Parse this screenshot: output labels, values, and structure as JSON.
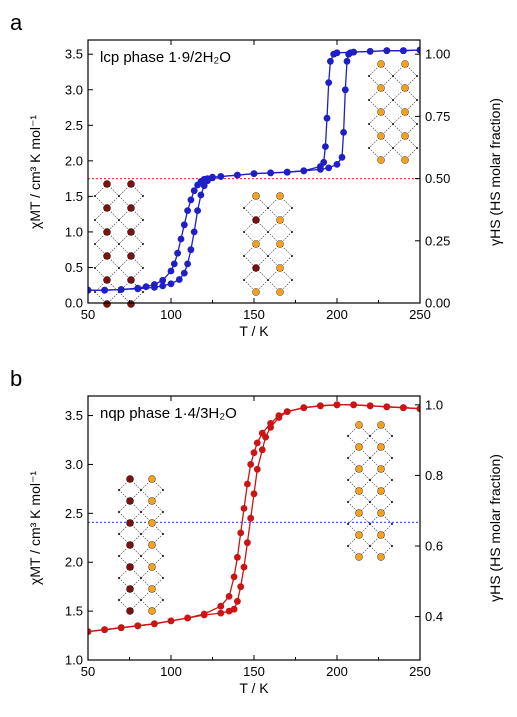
{
  "figure": {
    "panel_letters": [
      "a",
      "b"
    ]
  },
  "colors": {
    "panel_a": "#1f1fc8",
    "panel_b": "#cc1414",
    "ls_site": "#7a1010",
    "hs_site": "#f4a020",
    "lattice": "#333333"
  },
  "chart_data": [
    {
      "type": "line",
      "panel": "a",
      "annotation": "lcp phase 1·9/2H₂O",
      "xlabel": "T / K",
      "ylabel": "χMT / cm³ K mol⁻¹",
      "y2label": "γHS (HS molar fraction)",
      "xlim": [
        50,
        250
      ],
      "ylim": [
        0,
        3.7
      ],
      "y2lim": [
        0,
        1.057
      ],
      "x_ticks": [
        "50",
        "100",
        "150",
        "200",
        "250"
      ],
      "y_ticks": [
        "0.0",
        "0.5",
        "1.0",
        "1.5",
        "2.0",
        "2.5",
        "3.0",
        "3.5"
      ],
      "y2_ticks": [
        "0.00",
        "0.25",
        "0.50",
        "0.75",
        "1.00"
      ],
      "reference_line": {
        "y2": 0.5,
        "color": "#ff3b3b"
      },
      "series": [
        {
          "x": [
            50,
            60,
            70,
            80,
            85,
            90,
            95,
            100,
            102,
            104,
            106,
            108,
            110,
            112,
            114,
            116,
            118,
            120,
            122,
            125,
            130,
            140,
            150,
            160,
            170,
            180,
            190,
            195,
            200,
            203,
            204,
            205,
            206,
            207,
            208,
            210,
            220,
            230,
            240,
            250
          ],
          "y": [
            0.18,
            0.18,
            0.19,
            0.21,
            0.23,
            0.26,
            0.32,
            0.45,
            0.55,
            0.7,
            0.9,
            1.1,
            1.3,
            1.45,
            1.58,
            1.66,
            1.71,
            1.74,
            1.75,
            1.77,
            1.78,
            1.8,
            1.82,
            1.83,
            1.84,
            1.86,
            1.88,
            1.9,
            1.95,
            2.05,
            2.4,
            3.0,
            3.4,
            3.5,
            3.52,
            3.53,
            3.54,
            3.55,
            3.55,
            3.56
          ]
        },
        {
          "x": [
            250,
            240,
            230,
            220,
            210,
            200,
            198,
            196,
            195,
            194,
            193,
            192,
            190,
            180,
            170,
            160,
            150,
            140,
            130,
            125,
            122,
            120,
            118,
            116,
            114,
            112,
            110,
            108,
            105,
            100,
            95,
            90,
            80,
            70,
            60,
            50
          ],
          "y": [
            3.56,
            3.55,
            3.55,
            3.54,
            3.53,
            3.52,
            3.5,
            3.4,
            3.1,
            2.6,
            2.2,
            1.98,
            1.92,
            1.86,
            1.84,
            1.83,
            1.82,
            1.8,
            1.78,
            1.76,
            1.72,
            1.65,
            1.52,
            1.3,
            1.0,
            0.75,
            0.55,
            0.42,
            0.33,
            0.27,
            0.24,
            0.22,
            0.2,
            0.19,
            0.18,
            0.18
          ]
        }
      ]
    },
    {
      "type": "line",
      "panel": "b",
      "annotation": "nqp phase 1·4/3H₂O",
      "xlabel": "T / K",
      "ylabel": "χMT / cm³ K mol⁻¹",
      "y2label": "γHS (HS molar fraction)",
      "xlim": [
        50,
        250
      ],
      "ylim": [
        1.0,
        3.7
      ],
      "y2lim": [
        0.277,
        1.025
      ],
      "x_ticks": [
        "50",
        "100",
        "150",
        "200",
        "250"
      ],
      "y_ticks": [
        "1.0",
        "1.5",
        "2.0",
        "2.5",
        "3.0",
        "3.5"
      ],
      "y2_ticks": [
        "0.4",
        "0.6",
        "0.8",
        "1.0"
      ],
      "reference_line": {
        "y2": 0.667,
        "color": "#4a62e0"
      },
      "series": [
        {
          "x": [
            50,
            60,
            70,
            80,
            90,
            100,
            110,
            120,
            130,
            135,
            138,
            140,
            142,
            144,
            146,
            148,
            150,
            152,
            155,
            160,
            165,
            170,
            180,
            190,
            200,
            210,
            220,
            230,
            240,
            250
          ],
          "y": [
            1.29,
            1.31,
            1.33,
            1.35,
            1.37,
            1.4,
            1.43,
            1.47,
            1.55,
            1.65,
            1.85,
            2.05,
            2.3,
            2.55,
            2.8,
            3.0,
            3.12,
            3.22,
            3.32,
            3.42,
            3.5,
            3.54,
            3.58,
            3.6,
            3.61,
            3.61,
            3.6,
            3.59,
            3.58,
            3.57
          ]
        },
        {
          "x": [
            250,
            240,
            230,
            220,
            210,
            200,
            190,
            180,
            170,
            165,
            160,
            157,
            155,
            152,
            150,
            148,
            146,
            144,
            142,
            140,
            138,
            135,
            130,
            120,
            110,
            100,
            90,
            80,
            70,
            60,
            50
          ],
          "y": [
            3.57,
            3.58,
            3.59,
            3.6,
            3.61,
            3.61,
            3.6,
            3.58,
            3.54,
            3.48,
            3.38,
            3.28,
            3.15,
            2.95,
            2.7,
            2.45,
            2.2,
            1.95,
            1.75,
            1.6,
            1.52,
            1.5,
            1.48,
            1.46,
            1.43,
            1.4,
            1.37,
            1.35,
            1.33,
            1.31,
            1.29
          ]
        }
      ]
    }
  ]
}
